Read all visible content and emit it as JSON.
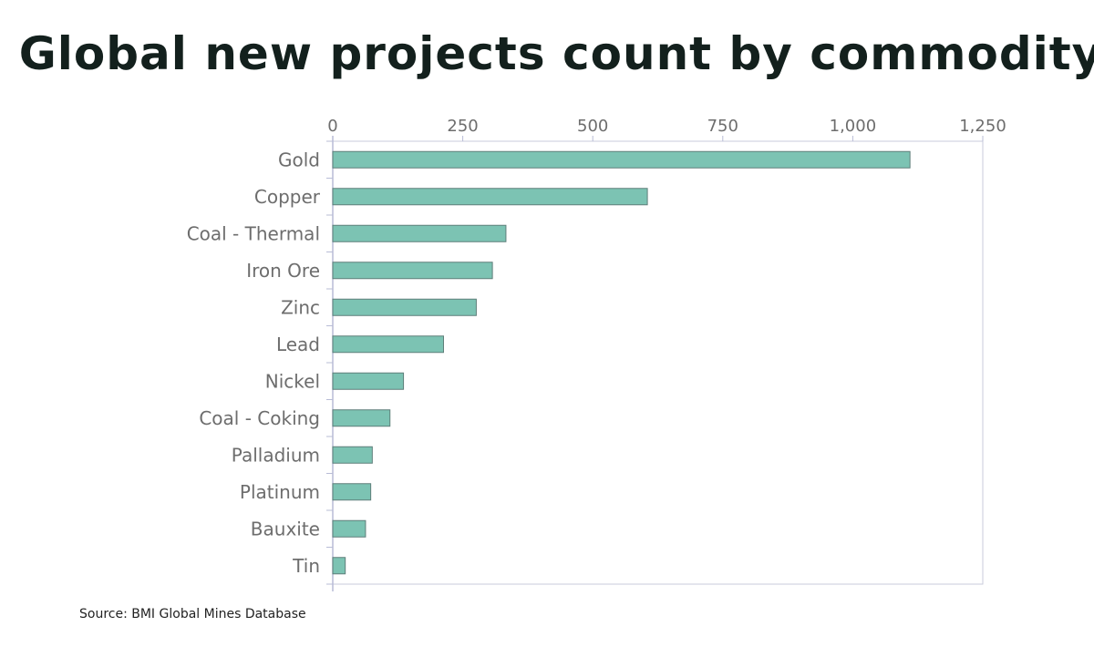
{
  "title": "Global new projects count by commodity",
  "source": "Source: BMI Global Mines Database",
  "chart_data": {
    "type": "bar",
    "orientation": "horizontal",
    "title": "Global new projects count by commodity",
    "xlabel": "",
    "ylabel": "",
    "xlim": [
      0,
      1250
    ],
    "x_ticks": [
      "0",
      "250",
      "500",
      "750",
      "1,000",
      "1,250"
    ],
    "x_tick_values": [
      0,
      250,
      500,
      750,
      1000,
      1250
    ],
    "categories": [
      "Gold",
      "Copper",
      "Coal - Thermal",
      "Iron Ore",
      "Zinc",
      "Lead",
      "Nickel",
      "Coal - Coking",
      "Palladium",
      "Platinum",
      "Bauxite",
      "Tin"
    ],
    "values": [
      1110,
      605,
      333,
      307,
      276,
      213,
      136,
      110,
      76,
      73,
      63,
      24
    ],
    "grid": false,
    "colors": {
      "bar_fill": "#7cc3b3",
      "bar_stroke": "#5f7f7a",
      "axis": "#b8bcd6",
      "tick_text": "#6d6d6d"
    }
  }
}
